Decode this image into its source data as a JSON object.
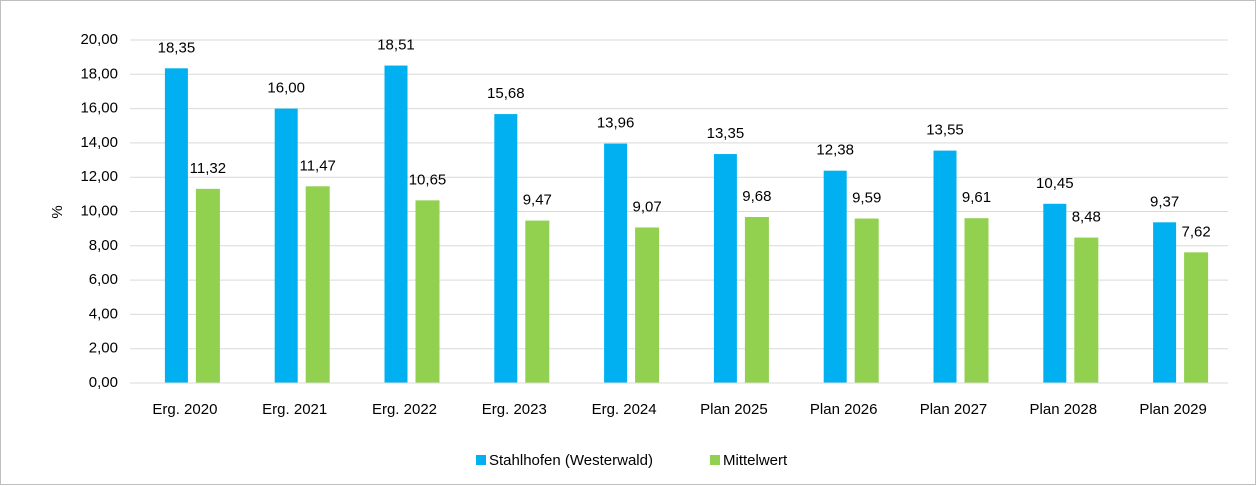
{
  "chart_data": {
    "type": "bar",
    "y_label": "%",
    "categories": [
      "Erg. 2020",
      "Erg. 2021",
      "Erg. 2022",
      "Erg. 2023",
      "Erg. 2024",
      "Plan 2025",
      "Plan 2026",
      "Plan 2027",
      "Plan 2028",
      "Plan 2029"
    ],
    "series": [
      {
        "name": "Stahlhofen (Westerwald)",
        "color": "#00b0f0",
        "values": [
          18.35,
          16.0,
          18.51,
          15.68,
          13.96,
          13.35,
          12.38,
          13.55,
          10.45,
          9.37
        ],
        "value_labels": [
          "18,35",
          "16,00",
          "18,51",
          "15,68",
          "13,96",
          "13,35",
          "12,38",
          "13,55",
          "10,45",
          "9,37"
        ]
      },
      {
        "name": "Mittelwert",
        "color": "#92d050",
        "values": [
          11.32,
          11.47,
          10.65,
          9.47,
          9.07,
          9.68,
          9.59,
          9.61,
          8.48,
          7.62
        ],
        "value_labels": [
          "11,32",
          "11,47",
          "10,65",
          "9,47",
          "9,07",
          "9,68",
          "9,59",
          "9,61",
          "8,48",
          "7,62"
        ]
      }
    ],
    "ylim": [
      0,
      20
    ],
    "yticks": [
      {
        "value": 0,
        "label": "0,00"
      },
      {
        "value": 2,
        "label": "2,00"
      },
      {
        "value": 4,
        "label": "4,00"
      },
      {
        "value": 6,
        "label": "6,00"
      },
      {
        "value": 8,
        "label": "8,00"
      },
      {
        "value": 10,
        "label": "10,00"
      },
      {
        "value": 12,
        "label": "12,00"
      },
      {
        "value": 14,
        "label": "14,00"
      },
      {
        "value": 16,
        "label": "16,00"
      },
      {
        "value": 18,
        "label": "18,00"
      },
      {
        "value": 20,
        "label": "20,00"
      }
    ],
    "grid": true,
    "legend": "bottom"
  }
}
